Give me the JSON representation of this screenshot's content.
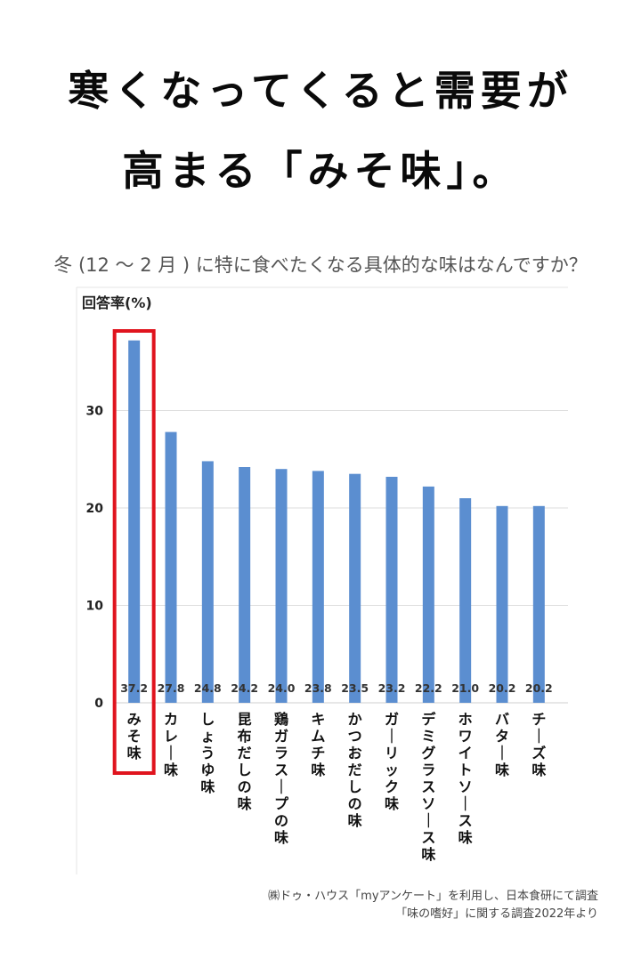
{
  "headline": {
    "line1": "寒くなってくると需要が",
    "line2": "高まる「みそ味」。"
  },
  "question": "冬 (12 〜 2 月 ) に特に食べたくなる具体的な味はなんですか？",
  "source": {
    "line1": "㈱ドゥ・ハウス「myアンケート」を利用し、日本食研にて調査",
    "line2": "「味の嗜好」に関する調査2022年より"
  },
  "colors": {
    "bar": "#5b8ed0",
    "highlight": "#e0141e",
    "grid": "#dddddd"
  },
  "chart_data": {
    "type": "bar",
    "ylabel": "回答率(%)",
    "ylim": [
      0,
      40
    ],
    "yticks": [
      0,
      10,
      20,
      30
    ],
    "grid": true,
    "highlight_index": 0,
    "categories": [
      "みそ味",
      "カレー味",
      "しょうゆ味",
      "昆布だしの味",
      "鶏ガラスープの味",
      "キムチ味",
      "かつおだしの味",
      "ガーリック味",
      "デミグラスソース味",
      "ホワイトソース味",
      "バター味",
      "チーズ味"
    ],
    "values": [
      37.2,
      27.8,
      24.8,
      24.2,
      24.0,
      23.8,
      23.5,
      23.2,
      22.2,
      21.0,
      20.2,
      20.2
    ],
    "data_labels": [
      "37.2",
      "27.8",
      "24.8",
      "24.2",
      "24.0",
      "23.8",
      "23.5",
      "23.2",
      "22.2",
      "21.0",
      "20.2",
      "20.2"
    ]
  }
}
